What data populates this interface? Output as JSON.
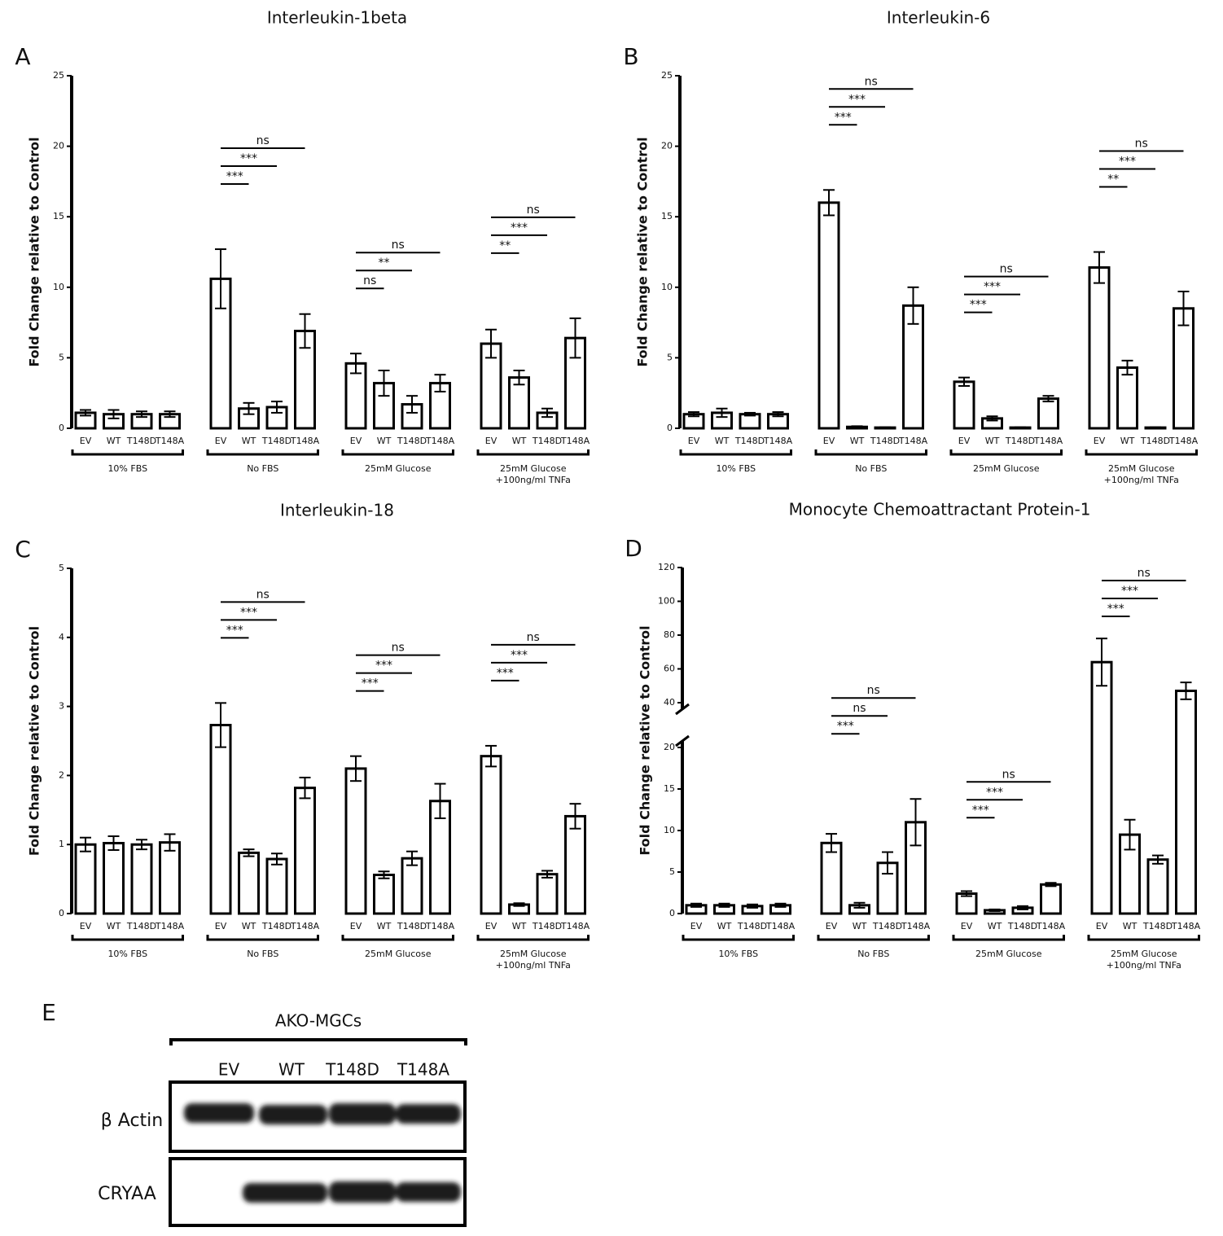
{
  "chart_data": [
    {
      "type": "bar",
      "panel": "A",
      "title": "Interleukin-1beta",
      "ylabel": "Fold Change relative to Control",
      "categories": [
        "EV",
        "WT",
        "T148D",
        "T148A",
        "EV",
        "WT",
        "T148D",
        "T148A",
        "EV",
        "WT",
        "T148D",
        "T148A",
        "EV",
        "WT",
        "T148D",
        "T148A"
      ],
      "groups": [
        [
          "10% FBS"
        ],
        [
          "No FBS"
        ],
        [
          "25mM Glucose"
        ],
        [
          "25mM Glucose",
          "+100ng/ml TNFa"
        ]
      ],
      "values": [
        1.1,
        1.0,
        1.0,
        1.0,
        10.6,
        1.4,
        1.5,
        6.9,
        4.6,
        3.2,
        1.7,
        3.2,
        6.0,
        3.6,
        1.1,
        6.4
      ],
      "errors": [
        0.2,
        0.3,
        0.2,
        0.2,
        2.1,
        0.4,
        0.4,
        1.2,
        0.7,
        0.9,
        0.6,
        0.6,
        1.0,
        0.5,
        0.3,
        1.4
      ],
      "significance": [
        [],
        [
          "***",
          "***",
          "ns"
        ],
        [
          "ns",
          "**",
          "ns"
        ],
        [
          "**",
          "***",
          "ns"
        ]
      ],
      "ylim": [
        0,
        25
      ],
      "yticks": [
        0,
        5,
        10,
        15,
        20,
        25
      ],
      "color": "#ffffff"
    },
    {
      "type": "bar",
      "panel": "B",
      "title": "Interleukin-6",
      "ylabel": "Fold Change relative to Control",
      "categories": [
        "EV",
        "WT",
        "T148D",
        "T148A",
        "EV",
        "WT",
        "T148D",
        "T148A",
        "EV",
        "WT",
        "T148D",
        "T148A",
        "EV",
        "WT",
        "T148D",
        "T148A"
      ],
      "groups": [
        [
          "10% FBS"
        ],
        [
          "No FBS"
        ],
        [
          "25mM Glucose"
        ],
        [
          "25mM Glucose",
          "+100ng/ml TNFa"
        ]
      ],
      "values": [
        1.0,
        1.1,
        1.0,
        1.0,
        16.0,
        0.1,
        0.05,
        8.7,
        3.3,
        0.7,
        0.05,
        2.1,
        11.4,
        4.3,
        0.05,
        8.5
      ],
      "errors": [
        0.15,
        0.3,
        0.1,
        0.15,
        0.9,
        0.05,
        0.02,
        1.3,
        0.3,
        0.15,
        0.02,
        0.2,
        1.1,
        0.5,
        0.02,
        1.2
      ],
      "significance": [
        [],
        [
          "***",
          "***",
          "ns"
        ],
        [
          "***",
          "***",
          "ns"
        ],
        [
          "**",
          "***",
          "ns"
        ]
      ],
      "ylim": [
        0,
        25
      ],
      "yticks": [
        0,
        5,
        10,
        15,
        20,
        25
      ],
      "color": "#ffffff"
    },
    {
      "type": "bar",
      "panel": "C",
      "title": "Interleukin-18",
      "ylabel": "Fold Change relative to Control",
      "categories": [
        "EV",
        "WT",
        "T148D",
        "T148A",
        "EV",
        "WT",
        "T148D",
        "T148A",
        "EV",
        "WT",
        "T148D",
        "T148A",
        "EV",
        "WT",
        "T148D",
        "T148A"
      ],
      "groups": [
        [
          "10% FBS"
        ],
        [
          "No FBS"
        ],
        [
          "25mM Glucose"
        ],
        [
          "25mM Glucose",
          "+100ng/ml TNFa"
        ]
      ],
      "values": [
        1.0,
        1.02,
        1.0,
        1.03,
        2.73,
        0.88,
        0.79,
        1.82,
        2.1,
        0.56,
        0.8,
        1.63,
        2.28,
        0.13,
        0.57,
        1.41
      ],
      "errors": [
        0.1,
        0.1,
        0.07,
        0.12,
        0.32,
        0.05,
        0.08,
        0.15,
        0.18,
        0.05,
        0.1,
        0.25,
        0.15,
        0.02,
        0.05,
        0.18
      ],
      "significance": [
        [],
        [
          "***",
          "***",
          "ns"
        ],
        [
          "***",
          "***",
          "ns"
        ],
        [
          "***",
          "***",
          "ns"
        ]
      ],
      "ylim": [
        0,
        5
      ],
      "yticks": [
        0,
        1,
        2,
        3,
        4,
        5
      ],
      "color": "#ffffff"
    },
    {
      "type": "bar",
      "panel": "D",
      "title": "Monocyte Chemoattractant Protein-1",
      "ylabel": "Fold Change relative to Control",
      "categories": [
        "EV",
        "WT",
        "T148D",
        "T148A",
        "EV",
        "WT",
        "T148D",
        "T148A",
        "EV",
        "WT",
        "T148D",
        "T148A",
        "EV",
        "WT",
        "T148D",
        "T148A"
      ],
      "groups": [
        [
          "10% FBS"
        ],
        [
          "No FBS"
        ],
        [
          "25mM Glucose"
        ],
        [
          "25mM Glucose",
          "+100ng/ml TNFa"
        ]
      ],
      "values": [
        1.0,
        1.0,
        0.9,
        1.0,
        8.5,
        1.0,
        6.1,
        11.0,
        2.4,
        0.4,
        0.7,
        3.5,
        64,
        9.5,
        6.5,
        47
      ],
      "errors": [
        0.2,
        0.2,
        0.2,
        0.2,
        1.1,
        0.3,
        1.3,
        2.8,
        0.3,
        0.1,
        0.2,
        0.2,
        14,
        1.8,
        0.5,
        5
      ],
      "significance": [
        [],
        [
          "***",
          "ns",
          "ns"
        ],
        [
          "***",
          "***",
          "ns"
        ],
        [
          "***",
          "***",
          "ns"
        ]
      ],
      "ylim": [
        0,
        120
      ],
      "ybreak": [
        20,
        40
      ],
      "yticks": [
        0,
        5,
        10,
        15,
        20,
        40,
        60,
        80,
        100,
        120
      ],
      "color": "#ffffff"
    }
  ],
  "blot": {
    "panel": "E",
    "title": "AKO-MGCs",
    "lanes": [
      "EV",
      "WT",
      "T148D",
      "T148A"
    ],
    "rows": [
      "β Actin",
      "CRYAA"
    ]
  }
}
